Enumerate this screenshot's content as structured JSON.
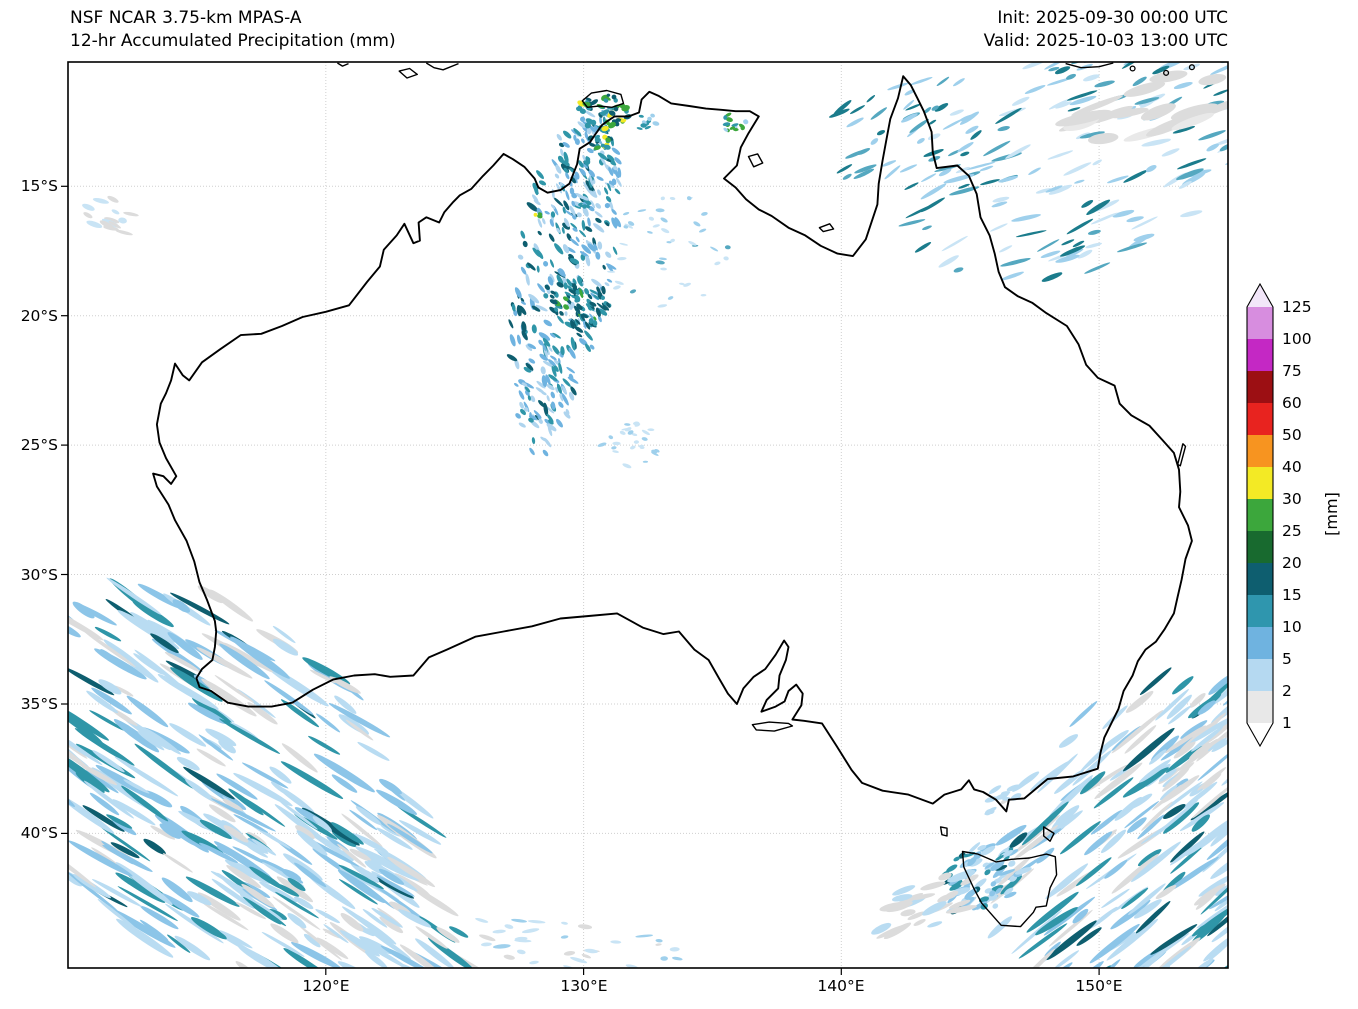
{
  "header": {
    "model": "NSF NCAR 3.75-km MPAS-A",
    "product": "12-hr Accumulated Precipitation (mm)",
    "init": "Init: 2025-09-30 00:00 UTC",
    "valid": "Valid: 2025-10-03 13:00 UTC"
  },
  "axes": {
    "y_ticks": [
      {
        "label": "15°S",
        "value": 15
      },
      {
        "label": "20°S",
        "value": 20
      },
      {
        "label": "25°S",
        "value": 25
      },
      {
        "label": "30°S",
        "value": 30
      },
      {
        "label": "35°S",
        "value": 35
      },
      {
        "label": "40°S",
        "value": 40
      }
    ],
    "x_ticks": [
      {
        "label": "120°E",
        "value": 120
      },
      {
        "label": "130°E",
        "value": 130
      },
      {
        "label": "140°E",
        "value": 140
      },
      {
        "label": "150°E",
        "value": 150
      }
    ]
  },
  "colorbar": {
    "unit": "[mm]",
    "boundaries_bottom_to_top": [
      "1",
      "2",
      "5",
      "10",
      "15",
      "20",
      "25",
      "30",
      "40",
      "50",
      "60",
      "75",
      "100",
      "125"
    ],
    "colors_bottom_to_top": [
      "#ffffff",
      "#e8e8e8",
      "#b5d9f1",
      "#6fb3e0",
      "#2f96ae",
      "#0e5e6f",
      "#186a2f",
      "#3ca73c",
      "#f3ea25",
      "#f79420",
      "#e8231f",
      "#9c0f13",
      "#c428c4",
      "#d78ddf",
      "#f2e6f9"
    ]
  },
  "chart_data": {
    "type": "heatmap",
    "title": "12-hr Accumulated Precipitation (mm)",
    "region": "Australia",
    "map_extent": {
      "lon_min_e": 110,
      "lon_max_e": 155,
      "lat_min_s": 10.2,
      "lat_max_s": 45.2
    },
    "colorbar_levels_mm": [
      1,
      2,
      5,
      10,
      15,
      20,
      25,
      30,
      40,
      50,
      60,
      75,
      100,
      125
    ],
    "precip_features": [
      {
        "area": "Indian Ocean southwest of Western Australia",
        "intensity_mm": "1-15",
        "pattern": "long diagonal streaks, light blue with teal cores and gray fringes"
      },
      {
        "area": "Central Northern Territory band (~129-131E, 12-24S)",
        "intensity_mm": "2-20",
        "pattern": "scattered convective speckles, densest near 130E 19S"
      },
      {
        "area": "Top End coast / Tiwi Islands / Darwin",
        "intensity_mm": "5-30",
        "pattern": "small cells with green and yellow cores"
      },
      {
        "area": "Arnhem Land coast (~135.5E)",
        "intensity_mm": "5-20",
        "pattern": "isolated green/teal cells"
      },
      {
        "area": "Coral Sea (northeast corner)",
        "intensity_mm": "1-10",
        "pattern": "scattered short bands plus light gray patch"
      },
      {
        "area": "Tasman Sea (southeast corner)",
        "intensity_mm": "1-15",
        "pattern": "diagonal streaks"
      },
      {
        "area": "West and south of Tasmania",
        "intensity_mm": "1-10",
        "pattern": "small blue area with gray streaks"
      },
      {
        "area": "Southern Ocean south of Bight",
        "intensity_mm": "1-5",
        "pattern": "sparse specks at bottom edge"
      }
    ]
  }
}
